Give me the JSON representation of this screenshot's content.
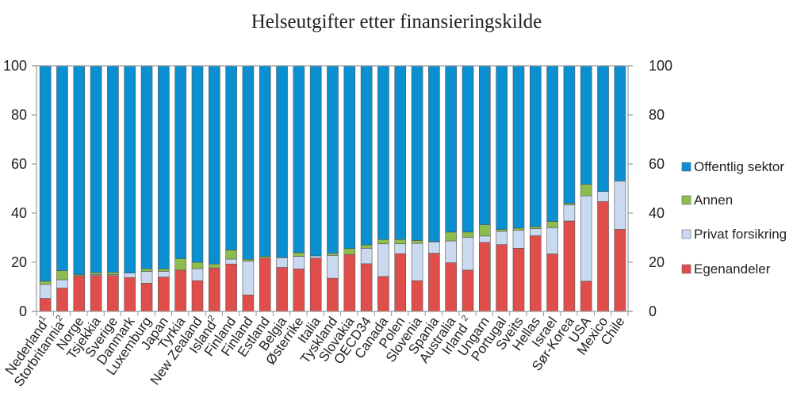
{
  "chart_data": {
    "type": "bar",
    "stacked": true,
    "title": "Helseutgifter etter finansieringskilde",
    "xlabel": "",
    "ylabel": "",
    "ylim": [
      0,
      100
    ],
    "yticks": [
      0,
      20,
      40,
      60,
      80,
      100
    ],
    "legend_position": "right",
    "highlight_category": "Norge",
    "highlight_color": "#1a9ad6",
    "categories": [
      {
        "name": "Nederland",
        "sup": "1"
      },
      {
        "name": "Storbritannia",
        "sup": "2"
      },
      {
        "name": "Norge",
        "sup": ""
      },
      {
        "name": "Tsjekkia",
        "sup": ""
      },
      {
        "name": "Sverige",
        "sup": ""
      },
      {
        "name": "Danmark",
        "sup": ""
      },
      {
        "name": "Luxemburg",
        "sup": ""
      },
      {
        "name": "Japan",
        "sup": ""
      },
      {
        "name": "Tyrkia",
        "sup": ""
      },
      {
        "name": "New Zealand",
        "sup": ""
      },
      {
        "name": "Island",
        "sup": "2"
      },
      {
        "name": "Finland",
        "sup": ""
      },
      {
        "name": "Finland",
        "sup": ""
      },
      {
        "name": "Estland",
        "sup": ""
      },
      {
        "name": "Belgia",
        "sup": ""
      },
      {
        "name": "Østerrike",
        "sup": ""
      },
      {
        "name": "Italia",
        "sup": ""
      },
      {
        "name": "Tyskland",
        "sup": ""
      },
      {
        "name": "Slovakia",
        "sup": ""
      },
      {
        "name": "OECD34",
        "sup": ""
      },
      {
        "name": "Canada",
        "sup": ""
      },
      {
        "name": "Polen",
        "sup": ""
      },
      {
        "name": "Slovenia",
        "sup": ""
      },
      {
        "name": "Spania",
        "sup": ""
      },
      {
        "name": "Australia",
        "sup": ""
      },
      {
        "name": "Irland ",
        "sup": "2"
      },
      {
        "name": "Ungarn",
        "sup": ""
      },
      {
        "name": "Portugal",
        "sup": ""
      },
      {
        "name": "Sveits",
        "sup": ""
      },
      {
        "name": "Hellas",
        "sup": ""
      },
      {
        "name": "Israel",
        "sup": ""
      },
      {
        "name": "Sør-Korea",
        "sup": ""
      },
      {
        "name": "USA",
        "sup": ""
      },
      {
        "name": "Mexico",
        "sup": ""
      },
      {
        "name": "Chile",
        "sup": ""
      }
    ],
    "series": [
      {
        "name": "Egenandeler",
        "color": "#e04e4b",
        "values": [
          5.3,
          9.5,
          14.5,
          14.6,
          14.6,
          13.8,
          11.5,
          14.0,
          16.8,
          12.5,
          17.7,
          19.3,
          6.7,
          21.7,
          17.9,
          17.3,
          21.7,
          13.5,
          23.2,
          19.4,
          14.2,
          23.5,
          12.5,
          23.7,
          19.8,
          16.8,
          28.1,
          27.2,
          25.7,
          30.8,
          23.4,
          36.8,
          12.3,
          44.7,
          33.4
        ]
      },
      {
        "name": "Privat forsikring",
        "color": "#c9d9f0",
        "values": [
          5.7,
          3.4,
          0.0,
          0.4,
          0.4,
          1.8,
          4.8,
          2.3,
          0.0,
          4.9,
          0.0,
          2.0,
          13.8,
          0.0,
          4.0,
          5.1,
          0.9,
          9.3,
          0.0,
          6.3,
          13.3,
          4.0,
          15.2,
          4.6,
          8.9,
          13.4,
          2.6,
          5.4,
          7.3,
          2.9,
          10.7,
          6.6,
          34.8,
          4.1,
          19.7
        ]
      },
      {
        "name": "Annen",
        "color": "#8dbd4f",
        "values": [
          1.3,
          3.7,
          0.5,
          0.8,
          0.9,
          0.0,
          1.1,
          1.0,
          4.7,
          2.6,
          1.6,
          3.7,
          0.7,
          0.7,
          0.1,
          1.5,
          0.0,
          0.9,
          2.4,
          1.4,
          1.8,
          1.8,
          1.2,
          0.2,
          3.6,
          2.1,
          4.6,
          0.8,
          0.9,
          0.8,
          2.5,
          0.6,
          4.6,
          0.0,
          0.0
        ]
      },
      {
        "name": "Offentlig sektor",
        "color": "#0a8fd1",
        "values": [
          87.7,
          83.4,
          85.0,
          84.2,
          84.1,
          84.4,
          82.6,
          82.7,
          78.5,
          80.0,
          80.7,
          75.0,
          78.8,
          77.6,
          78.0,
          76.1,
          77.4,
          76.3,
          74.4,
          72.9,
          70.7,
          70.7,
          71.1,
          71.5,
          67.7,
          67.7,
          64.7,
          66.6,
          66.1,
          65.5,
          63.4,
          56.0,
          48.3,
          51.2,
          46.9
        ]
      }
    ],
    "legend": [
      "Offentlig sektor",
      "Annen",
      "Privat forsikring",
      "Egenandeler"
    ]
  }
}
